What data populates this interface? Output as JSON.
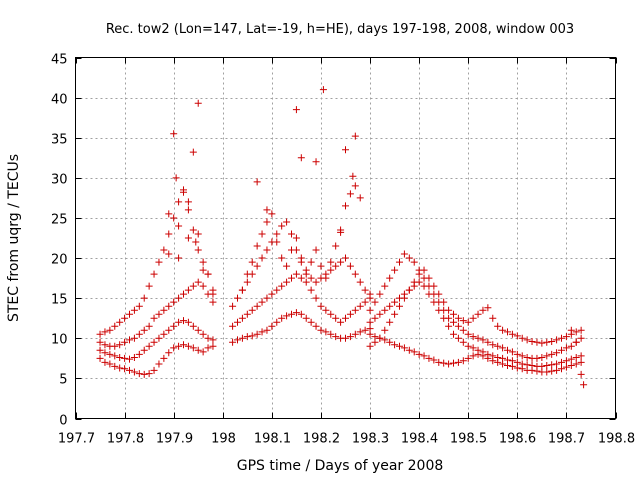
{
  "chart_data": {
    "type": "scatter",
    "title": "Rec. tow2 (Lon=147, Lat=-19, h=HE), days 197-198, 2008, window 003",
    "xlabel": "GPS time / Days of year 2008",
    "ylabel": "STEC from uqrg / TECUs",
    "xlim": [
      197.7,
      198.8
    ],
    "ylim": [
      0,
      45
    ],
    "xticks": [
      "197.7",
      "197.8",
      "197.9",
      "198",
      "198.1",
      "198.2",
      "198.3",
      "198.4",
      "198.5",
      "198.6",
      "198.7",
      "198.8"
    ],
    "yticks": [
      "0",
      "5",
      "10",
      "15",
      "20",
      "25",
      "30",
      "35",
      "40",
      "45"
    ],
    "grid": true,
    "marker": "plus",
    "color": "#cc0000",
    "series": [
      {
        "x": [
          197.75,
          197.76,
          197.77,
          197.78,
          197.79,
          197.8,
          197.81,
          197.82,
          197.83,
          197.84,
          197.85,
          197.86,
          197.87,
          197.88,
          197.89,
          197.9,
          197.91,
          197.92,
          197.93,
          197.94,
          197.95,
          197.96,
          197.97,
          197.98,
          197.75,
          197.76,
          197.77,
          197.78,
          197.79,
          197.8,
          197.81,
          197.82,
          197.83,
          197.84,
          197.85,
          197.86,
          197.87,
          197.88,
          197.89,
          197.9,
          197.91,
          197.92,
          197.93,
          197.94,
          197.95,
          197.96,
          197.97,
          197.98,
          197.75,
          197.76,
          197.77,
          197.78,
          197.79,
          197.8,
          197.81,
          197.82,
          197.83,
          197.84,
          197.85,
          197.86,
          197.87,
          197.88,
          197.89,
          197.9,
          197.91,
          197.92,
          197.93,
          197.94,
          197.95,
          197.96,
          197.97,
          197.98,
          197.75,
          197.76,
          197.77,
          197.78,
          197.79,
          197.8,
          197.81,
          197.82,
          197.83,
          197.84,
          197.85,
          197.86,
          197.87,
          197.88,
          197.89,
          197.9,
          197.91,
          197.92,
          197.93,
          197.94,
          197.95,
          197.96,
          197.97,
          197.98,
          197.89,
          197.9,
          197.905,
          197.91,
          197.92,
          197.93,
          197.94,
          197.945,
          197.95,
          197.95,
          197.89,
          197.91,
          197.93,
          197.96,
          197.97,
          197.98,
          198.02,
          198.03,
          198.04,
          198.05,
          198.06,
          198.07,
          198.08,
          198.09,
          198.1,
          198.11,
          198.12,
          198.13,
          198.14,
          198.15,
          198.16,
          198.17,
          198.18,
          198.19,
          198.2,
          198.21,
          198.22,
          198.23,
          198.24,
          198.25,
          198.26,
          198.27,
          198.28,
          198.29,
          198.3,
          198.02,
          198.03,
          198.04,
          198.05,
          198.06,
          198.07,
          198.08,
          198.09,
          198.1,
          198.11,
          198.12,
          198.13,
          198.14,
          198.15,
          198.16,
          198.17,
          198.18,
          198.19,
          198.2,
          198.21,
          198.22,
          198.23,
          198.24,
          198.25,
          198.26,
          198.27,
          198.28,
          198.29,
          198.3,
          198.02,
          198.03,
          198.04,
          198.05,
          198.06,
          198.07,
          198.08,
          198.09,
          198.1,
          198.11,
          198.12,
          198.13,
          198.14,
          198.15,
          198.16,
          198.17,
          198.18,
          198.19,
          198.2,
          198.21,
          198.22,
          198.23,
          198.24,
          198.25,
          198.26,
          198.27,
          198.28,
          198.29,
          198.3,
          198.04,
          198.05,
          198.06,
          198.07,
          198.08,
          198.09,
          198.1,
          198.11,
          198.12,
          198.13,
          198.14,
          198.15,
          198.16,
          198.17,
          198.18,
          198.19,
          198.2,
          198.21,
          198.22,
          198.23,
          198.24,
          198.25,
          198.26,
          198.27,
          198.28,
          198.15,
          198.16,
          198.19,
          198.205,
          198.27,
          198.265,
          198.07,
          198.09,
          198.25,
          198.24,
          198.3,
          198.31,
          198.32,
          198.33,
          198.34,
          198.35,
          198.36,
          198.37,
          198.38,
          198.39,
          198.4,
          198.41,
          198.42,
          198.43,
          198.44,
          198.45,
          198.46,
          198.47,
          198.48,
          198.49,
          198.5,
          198.51,
          198.52,
          198.53,
          198.54,
          198.55,
          198.56,
          198.57,
          198.58,
          198.59,
          198.6,
          198.61,
          198.62,
          198.63,
          198.64,
          198.65,
          198.66,
          198.67,
          198.68,
          198.69,
          198.7,
          198.71,
          198.72,
          198.73,
          198.3,
          198.31,
          198.32,
          198.33,
          198.34,
          198.35,
          198.36,
          198.37,
          198.38,
          198.39,
          198.4,
          198.41,
          198.42,
          198.43,
          198.44,
          198.45,
          198.46,
          198.47,
          198.48,
          198.49,
          198.5,
          198.51,
          198.52,
          198.53,
          198.54,
          198.55,
          198.56,
          198.57,
          198.58,
          198.59,
          198.6,
          198.61,
          198.62,
          198.63,
          198.64,
          198.65,
          198.66,
          198.67,
          198.68,
          198.69,
          198.7,
          198.71,
          198.72,
          198.73,
          198.3,
          198.31,
          198.32,
          198.33,
          198.34,
          198.35,
          198.36,
          198.37,
          198.38,
          198.39,
          198.4,
          198.41,
          198.42,
          198.43,
          198.44,
          198.45,
          198.46,
          198.47,
          198.48,
          198.49,
          198.5,
          198.51,
          198.52,
          198.53,
          198.54,
          198.55,
          198.56,
          198.57,
          198.58,
          198.59,
          198.6,
          198.61,
          198.62,
          198.63,
          198.64,
          198.65,
          198.66,
          198.67,
          198.68,
          198.69,
          198.7,
          198.71,
          198.72,
          198.73,
          198.3,
          198.31,
          198.32,
          198.33,
          198.34,
          198.35,
          198.36,
          198.37,
          198.38,
          198.39,
          198.4,
          198.41,
          198.42,
          198.43,
          198.44,
          198.45,
          198.46,
          198.47,
          198.48,
          198.49,
          198.5,
          198.51,
          198.52,
          198.53,
          198.54,
          198.55,
          198.56,
          198.57,
          198.58,
          198.59,
          198.6,
          198.61,
          198.62,
          198.63,
          198.64,
          198.65,
          198.66,
          198.67,
          198.68,
          198.69,
          198.7,
          198.71,
          198.72,
          198.73,
          198.735,
          198.73,
          198.72,
          198.71
        ],
        "y": [
          7.5,
          7.0,
          6.8,
          6.5,
          6.3,
          6.2,
          6.0,
          5.8,
          5.6,
          5.5,
          5.6,
          6.0,
          6.8,
          7.5,
          8.2,
          8.8,
          9.0,
          9.2,
          9.0,
          8.8,
          8.5,
          8.3,
          8.8,
          9.0,
          8.5,
          8.2,
          8.0,
          7.8,
          7.6,
          7.5,
          7.4,
          7.6,
          8.0,
          8.5,
          9.0,
          9.5,
          10.0,
          10.5,
          11.0,
          11.5,
          12.0,
          12.2,
          12.0,
          11.5,
          11.0,
          10.5,
          10.0,
          9.8,
          9.5,
          9.2,
          9.0,
          9.0,
          9.2,
          9.5,
          9.8,
          10.0,
          10.5,
          11.0,
          11.5,
          12.5,
          13.0,
          13.5,
          14.0,
          14.5,
          15.0,
          15.5,
          16.0,
          16.5,
          17.0,
          16.5,
          15.5,
          14.5,
          10.5,
          10.8,
          11.0,
          11.5,
          12.0,
          12.5,
          13.0,
          13.5,
          14.0,
          15.0,
          16.5,
          18.0,
          19.5,
          21.0,
          23.0,
          25.0,
          27.0,
          28.5,
          26.0,
          23.5,
          21.0,
          19.5,
          18.0,
          16.0,
          25.5,
          35.5,
          30.0,
          24.0,
          28.2,
          27.0,
          33.2,
          22.0,
          39.3,
          23.0,
          20.5,
          20.0,
          22.5,
          18.5,
          18.0,
          15.5,
          9.5,
          9.8,
          10.0,
          10.2,
          10.3,
          10.5,
          10.8,
          11.0,
          11.5,
          12.0,
          12.5,
          12.8,
          13.0,
          13.2,
          13.0,
          12.5,
          12.0,
          11.5,
          11.0,
          10.8,
          10.5,
          10.2,
          10.0,
          10.0,
          10.2,
          10.5,
          10.8,
          11.0,
          11.2,
          11.5,
          12.0,
          12.5,
          13.0,
          13.5,
          14.0,
          14.5,
          15.0,
          15.5,
          16.0,
          16.5,
          17.0,
          17.5,
          18.0,
          17.5,
          17.0,
          16.0,
          15.0,
          14.0,
          13.5,
          13.0,
          12.5,
          12.0,
          12.5,
          13.0,
          13.5,
          14.0,
          14.5,
          15.0,
          14.0,
          15.0,
          16.0,
          17.0,
          18.0,
          19.0,
          20.0,
          21.0,
          22.0,
          23.0,
          24.0,
          24.5,
          23.0,
          21.0,
          19.5,
          18.5,
          17.5,
          17.0,
          17.5,
          18.0,
          18.5,
          19.0,
          19.5,
          20.0,
          19.0,
          18.0,
          17.0,
          16.0,
          15.5,
          16.0,
          18.0,
          19.5,
          21.5,
          23.0,
          24.5,
          25.5,
          22.0,
          20.0,
          19.0,
          21.0,
          22.5,
          20.0,
          18.0,
          19.5,
          21.0,
          19.0,
          17.5,
          19.5,
          21.5,
          23.5,
          26.5,
          28.0,
          29.0,
          27.5,
          38.5,
          32.5,
          32.0,
          41.0,
          35.2,
          30.2,
          29.5,
          26.0,
          33.5,
          23.2,
          10.5,
          10.2,
          10.0,
          9.8,
          9.5,
          9.2,
          9.0,
          8.8,
          8.5,
          8.3,
          8.0,
          7.8,
          7.5,
          7.3,
          7.0,
          6.9,
          6.8,
          6.9,
          7.0,
          7.2,
          7.5,
          7.8,
          8.0,
          7.8,
          7.5,
          7.2,
          7.0,
          6.8,
          6.6,
          6.5,
          6.3,
          6.2,
          6.0,
          6.0,
          5.9,
          5.8,
          5.8,
          5.9,
          6.0,
          6.2,
          6.4,
          6.6,
          6.8,
          7.0,
          12.0,
          12.5,
          13.0,
          13.5,
          14.0,
          14.5,
          15.0,
          15.5,
          16.0,
          16.5,
          17.0,
          16.5,
          15.5,
          14.5,
          13.5,
          12.5,
          11.5,
          10.5,
          10.0,
          9.5,
          9.0,
          8.8,
          8.5,
          8.3,
          8.0,
          7.8,
          7.6,
          7.5,
          7.3,
          7.2,
          7.0,
          6.8,
          6.7,
          6.6,
          6.5,
          6.5,
          6.6,
          6.7,
          6.8,
          7.0,
          7.2,
          7.4,
          7.6,
          7.8,
          13.5,
          14.5,
          15.5,
          16.5,
          17.5,
          18.5,
          19.5,
          20.5,
          20.0,
          19.5,
          18.5,
          17.5,
          16.5,
          15.5,
          14.5,
          13.5,
          12.5,
          12.0,
          11.5,
          11.0,
          10.5,
          10.2,
          10.0,
          9.8,
          9.5,
          9.2,
          9.0,
          8.8,
          8.5,
          8.3,
          8.0,
          7.8,
          7.6,
          7.5,
          7.5,
          7.6,
          7.8,
          8.0,
          8.2,
          8.5,
          8.8,
          9.0,
          9.5,
          10.0,
          9.0,
          9.5,
          10.0,
          11.0,
          12.0,
          13.0,
          14.0,
          15.0,
          16.0,
          17.0,
          18.0,
          18.5,
          17.5,
          16.5,
          15.5,
          14.5,
          13.5,
          13.0,
          12.5,
          12.2,
          12.0,
          12.5,
          13.0,
          13.5,
          13.8,
          12.5,
          11.5,
          11.0,
          10.8,
          10.5,
          10.3,
          10.0,
          9.8,
          9.6,
          9.5,
          9.4,
          9.5,
          9.6,
          9.8,
          10.0,
          10.2,
          10.5,
          10.8,
          11.0,
          4.2,
          5.5,
          9.5,
          11.0
        ]
      }
    ]
  }
}
